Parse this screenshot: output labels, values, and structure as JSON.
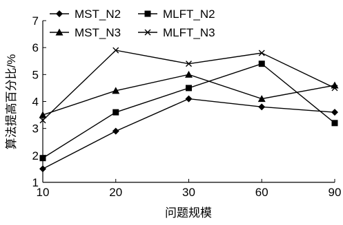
{
  "chart_data": {
    "type": "line",
    "title": "",
    "xlabel": "问题规模",
    "ylabel": "算法提高百分比/%",
    "categories": [
      "10",
      "20",
      "30",
      "60",
      "90"
    ],
    "ylim": [
      1,
      7
    ],
    "yticks": [
      "1",
      "2",
      "3",
      "4",
      "5",
      "6",
      "7"
    ],
    "grid": false,
    "legend_position": "top-left",
    "series": [
      {
        "name": "MST_N2",
        "marker": "diamond",
        "values": [
          1.5,
          2.9,
          4.1,
          3.8,
          3.6
        ]
      },
      {
        "name": "MLFT_N2",
        "marker": "square",
        "values": [
          1.9,
          3.6,
          4.5,
          5.4,
          3.2
        ]
      },
      {
        "name": "MST_N3",
        "marker": "triangle",
        "values": [
          3.5,
          4.4,
          5.0,
          4.1,
          4.6
        ]
      },
      {
        "name": "MLFT_N3",
        "marker": "cross",
        "values": [
          3.3,
          5.9,
          5.4,
          5.8,
          4.5
        ]
      }
    ],
    "line_color": "#000000"
  }
}
